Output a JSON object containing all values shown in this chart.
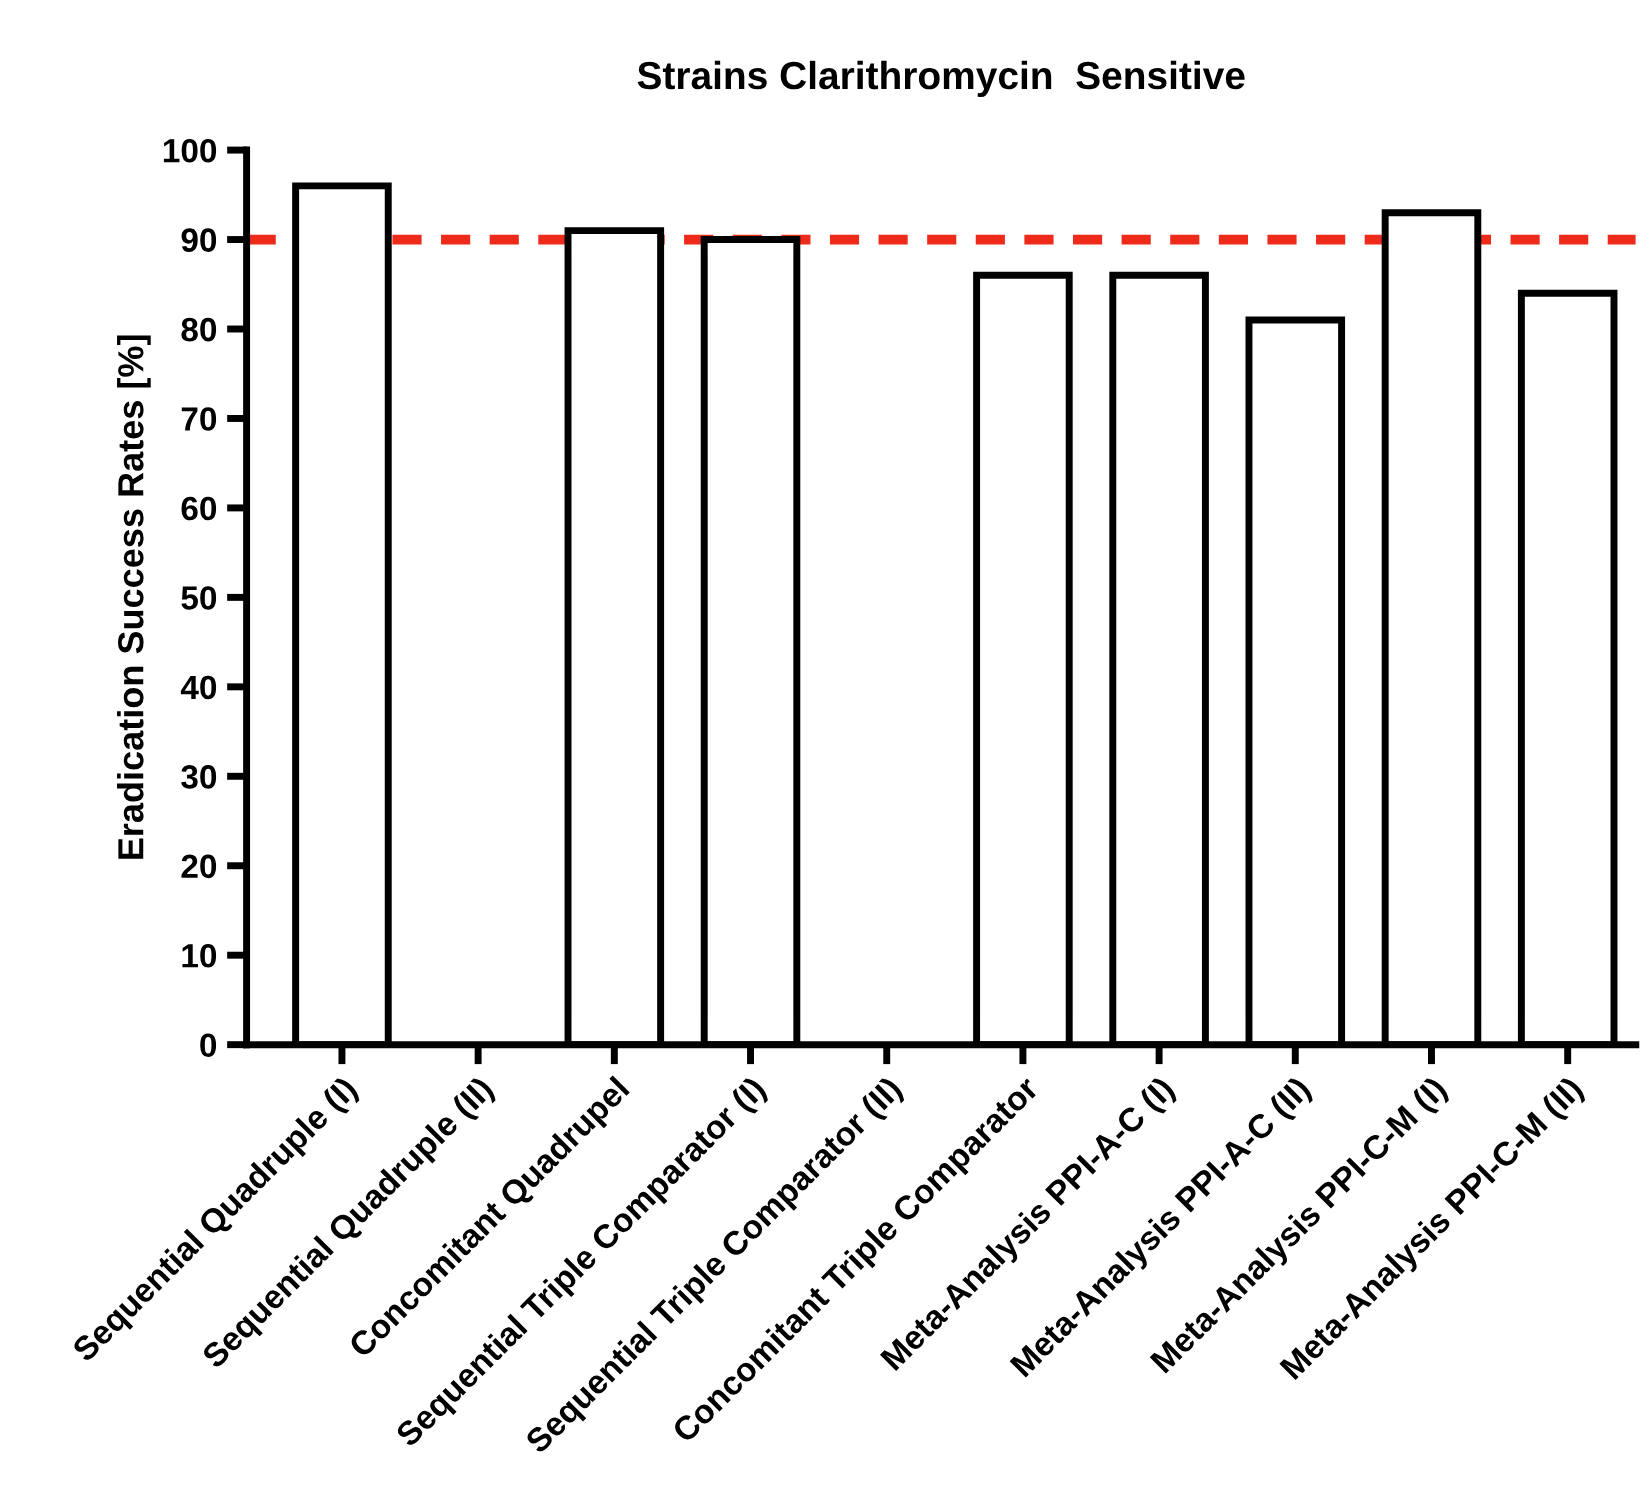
{
  "chart_data": {
    "type": "bar",
    "title": "Strains Clarithromycin  Sensitive",
    "ylabel": "Eradication Success Rates [%]",
    "categories": [
      "Sequential Quadruple (I)",
      "Sequential Quadruple (II)",
      "Concomitant Quadrupel",
      "Sequential Triple Comparator (I)",
      "Sequential Triple Comparator (II)",
      "Concomitant Triple Comparator",
      "Meta-Analysis PPI-A-C (I)",
      "Meta-Analysis PPI-A-C (II)",
      "Meta-Analysis PPI-C-M (I)",
      "Meta-Analysis PPI-C-M (II)"
    ],
    "values": [
      96,
      null,
      91,
      90,
      null,
      86,
      86,
      81,
      93,
      84
    ],
    "color": "#ffffff",
    "ylim": [
      0,
      100
    ],
    "yticks": [
      0,
      10,
      20,
      30,
      40,
      50,
      60,
      70,
      80,
      90,
      100
    ],
    "ref_lines": [
      {
        "axis": "y",
        "value": 90,
        "color": "#ee2a1b",
        "line_style": "dashed"
      }
    ],
    "grid": false,
    "legend": false
  }
}
